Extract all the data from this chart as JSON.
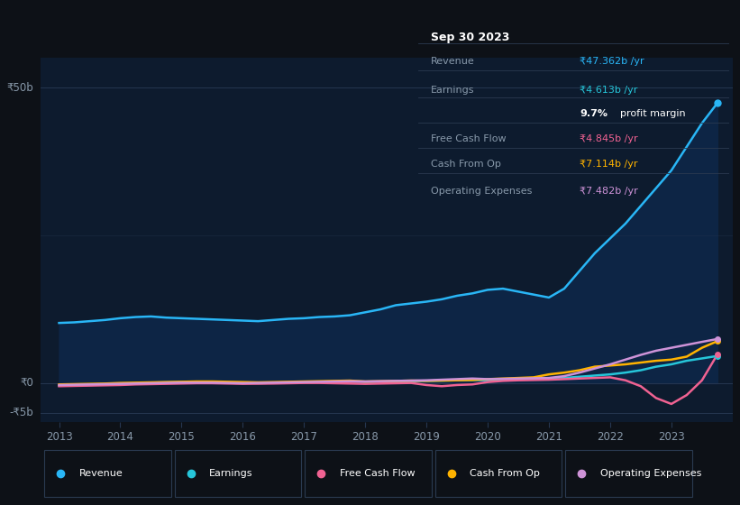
{
  "background_color": "#0d1117",
  "plot_bg_color": "#0d1b2e",
  "title_box": {
    "date": "Sep 30 2023",
    "rows": [
      {
        "label": "Revenue",
        "value": "₹47.362b /yr",
        "value_color": "#29b6f6"
      },
      {
        "label": "Earnings",
        "value": "₹4.613b /yr",
        "value_color": "#26c6da"
      },
      {
        "label": "",
        "value2_bold": "9.7%",
        "value2_rest": " profit margin"
      },
      {
        "label": "Free Cash Flow",
        "value": "₹4.845b /yr",
        "value_color": "#f06292"
      },
      {
        "label": "Cash From Op",
        "value": "₹7.114b /yr",
        "value_color": "#ffb300"
      },
      {
        "label": "Operating Expenses",
        "value": "₹7.482b /yr",
        "value_color": "#ce93d8"
      }
    ]
  },
  "years": [
    2013.0,
    2013.25,
    2013.5,
    2013.75,
    2014.0,
    2014.25,
    2014.5,
    2014.75,
    2015.0,
    2015.25,
    2015.5,
    2015.75,
    2016.0,
    2016.25,
    2016.5,
    2016.75,
    2017.0,
    2017.25,
    2017.5,
    2017.75,
    2018.0,
    2018.25,
    2018.5,
    2018.75,
    2019.0,
    2019.25,
    2019.5,
    2019.75,
    2020.0,
    2020.25,
    2020.5,
    2020.75,
    2021.0,
    2021.25,
    2021.5,
    2021.75,
    2022.0,
    2022.25,
    2022.5,
    2022.75,
    2023.0,
    2023.25,
    2023.5,
    2023.75
  ],
  "revenue": [
    10.2,
    10.3,
    10.5,
    10.7,
    11.0,
    11.2,
    11.3,
    11.1,
    11.0,
    10.9,
    10.8,
    10.7,
    10.6,
    10.5,
    10.7,
    10.9,
    11.0,
    11.2,
    11.3,
    11.5,
    12.0,
    12.5,
    13.2,
    13.5,
    13.8,
    14.2,
    14.8,
    15.2,
    15.8,
    16.0,
    15.5,
    15.0,
    14.5,
    16.0,
    19.0,
    22.0,
    24.5,
    27.0,
    30.0,
    33.0,
    36.0,
    40.0,
    44.0,
    47.362
  ],
  "earnings": [
    -0.4,
    -0.35,
    -0.3,
    -0.2,
    -0.1,
    0.0,
    0.1,
    0.15,
    0.2,
    0.2,
    0.15,
    0.1,
    0.05,
    0.0,
    0.05,
    0.1,
    0.15,
    0.2,
    0.25,
    0.3,
    0.2,
    0.25,
    0.3,
    0.35,
    0.4,
    0.45,
    0.5,
    0.55,
    0.5,
    0.55,
    0.65,
    0.7,
    0.75,
    0.9,
    1.1,
    1.3,
    1.5,
    1.8,
    2.2,
    2.8,
    3.2,
    3.8,
    4.2,
    4.613
  ],
  "free_cash": [
    -0.5,
    -0.45,
    -0.4,
    -0.35,
    -0.3,
    -0.2,
    -0.15,
    -0.1,
    -0.05,
    0.0,
    0.0,
    -0.05,
    -0.1,
    -0.08,
    -0.05,
    0.0,
    0.05,
    0.05,
    0.0,
    -0.05,
    -0.1,
    -0.05,
    0.0,
    0.05,
    -0.3,
    -0.5,
    -0.3,
    -0.2,
    0.2,
    0.4,
    0.5,
    0.55,
    0.6,
    0.7,
    0.8,
    0.9,
    1.0,
    0.5,
    -0.5,
    -2.5,
    -3.5,
    -2.0,
    0.5,
    4.845
  ],
  "cash_op": [
    -0.2,
    -0.15,
    -0.1,
    -0.05,
    0.05,
    0.1,
    0.15,
    0.2,
    0.25,
    0.3,
    0.3,
    0.25,
    0.2,
    0.15,
    0.2,
    0.25,
    0.3,
    0.35,
    0.4,
    0.45,
    0.3,
    0.35,
    0.4,
    0.45,
    0.4,
    0.45,
    0.5,
    0.55,
    0.7,
    0.8,
    0.9,
    1.0,
    1.5,
    1.8,
    2.2,
    2.8,
    3.0,
    3.2,
    3.5,
    3.8,
    4.0,
    4.5,
    6.0,
    7.114
  ],
  "op_expenses": [
    -0.3,
    -0.25,
    -0.2,
    -0.15,
    -0.1,
    -0.05,
    0.0,
    0.05,
    0.1,
    0.1,
    0.1,
    0.05,
    0.0,
    0.05,
    0.1,
    0.15,
    0.2,
    0.25,
    0.3,
    0.35,
    0.3,
    0.35,
    0.4,
    0.45,
    0.5,
    0.6,
    0.7,
    0.8,
    0.7,
    0.75,
    0.8,
    0.85,
    0.9,
    1.2,
    1.8,
    2.5,
    3.2,
    4.0,
    4.8,
    5.5,
    6.0,
    6.5,
    7.0,
    7.482
  ],
  "revenue_color": "#29b6f6",
  "earnings_color": "#26c6da",
  "free_cash_color": "#f06292",
  "cash_op_color": "#ffb300",
  "op_expenses_color": "#ce93d8",
  "fill_color": "#0d2545",
  "xlim": [
    2012.7,
    2024.0
  ],
  "ylim": [
    -6.5,
    55
  ],
  "ytick_0_y": 0,
  "ytick_50_y": 50,
  "ytick_neg5_y": -5,
  "xtick_years": [
    2013,
    2014,
    2015,
    2016,
    2017,
    2018,
    2019,
    2020,
    2021,
    2022,
    2023
  ],
  "grid_color": "#253650",
  "legend_items": [
    {
      "label": "Revenue",
      "color": "#29b6f6"
    },
    {
      "label": "Earnings",
      "color": "#26c6da"
    },
    {
      "label": "Free Cash Flow",
      "color": "#f06292"
    },
    {
      "label": "Cash From Op",
      "color": "#ffb300"
    },
    {
      "label": "Operating Expenses",
      "color": "#ce93d8"
    }
  ]
}
